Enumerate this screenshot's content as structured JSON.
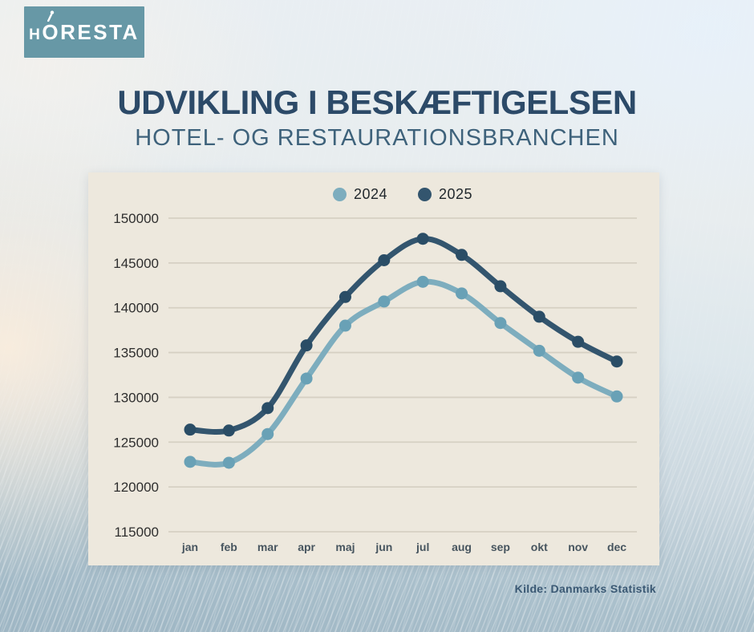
{
  "logo": {
    "letter_h": "H",
    "letter_o": "O",
    "letters_rest": "RESTA",
    "bg_color": "#6798a6",
    "icon": "fork-icon"
  },
  "header": {
    "title": "UDVIKLING I BESKÆFTIGELSEN",
    "subtitle": "HOTEL- OG RESTAURATIONSBRANCHEN",
    "title_color": "#2c4a68",
    "subtitle_color": "#3e627b"
  },
  "source": {
    "label": "Kilde: Danmarks Statistik"
  },
  "chart_data": {
    "type": "line",
    "title": "UDVIKLING I BESKÆFTIGELSEN",
    "subtitle": "HOTEL- OG RESTAURATIONSBRANCHEN",
    "categories": [
      "jan",
      "feb",
      "mar",
      "apr",
      "maj",
      "jun",
      "jul",
      "aug",
      "sep",
      "okt",
      "nov",
      "dec"
    ],
    "series": [
      {
        "name": "2024",
        "color": "#7dadbe",
        "marker_color": "#69a1b6",
        "values": [
          122800,
          122700,
          125900,
          132100,
          138000,
          140700,
          142900,
          141600,
          138300,
          135200,
          132200,
          130100
        ]
      },
      {
        "name": "2025",
        "color": "#33556e",
        "marker_color": "#2a4d66",
        "values": [
          126400,
          126300,
          128800,
          135800,
          141200,
          145300,
          147700,
          145900,
          142400,
          139000,
          136200,
          134000
        ]
      }
    ],
    "ylim": [
      115000,
      150000
    ],
    "yticks": [
      115000,
      120000,
      125000,
      130000,
      135000,
      140000,
      145000,
      150000
    ],
    "ytick_step": 5000,
    "grid": true,
    "legend_position": "top-center",
    "panel_bg": "#ede8dd",
    "gridline_color": "#d6d0c3",
    "ylabel_color": "#2e2e2e",
    "xlabel_color": "#47555f"
  }
}
